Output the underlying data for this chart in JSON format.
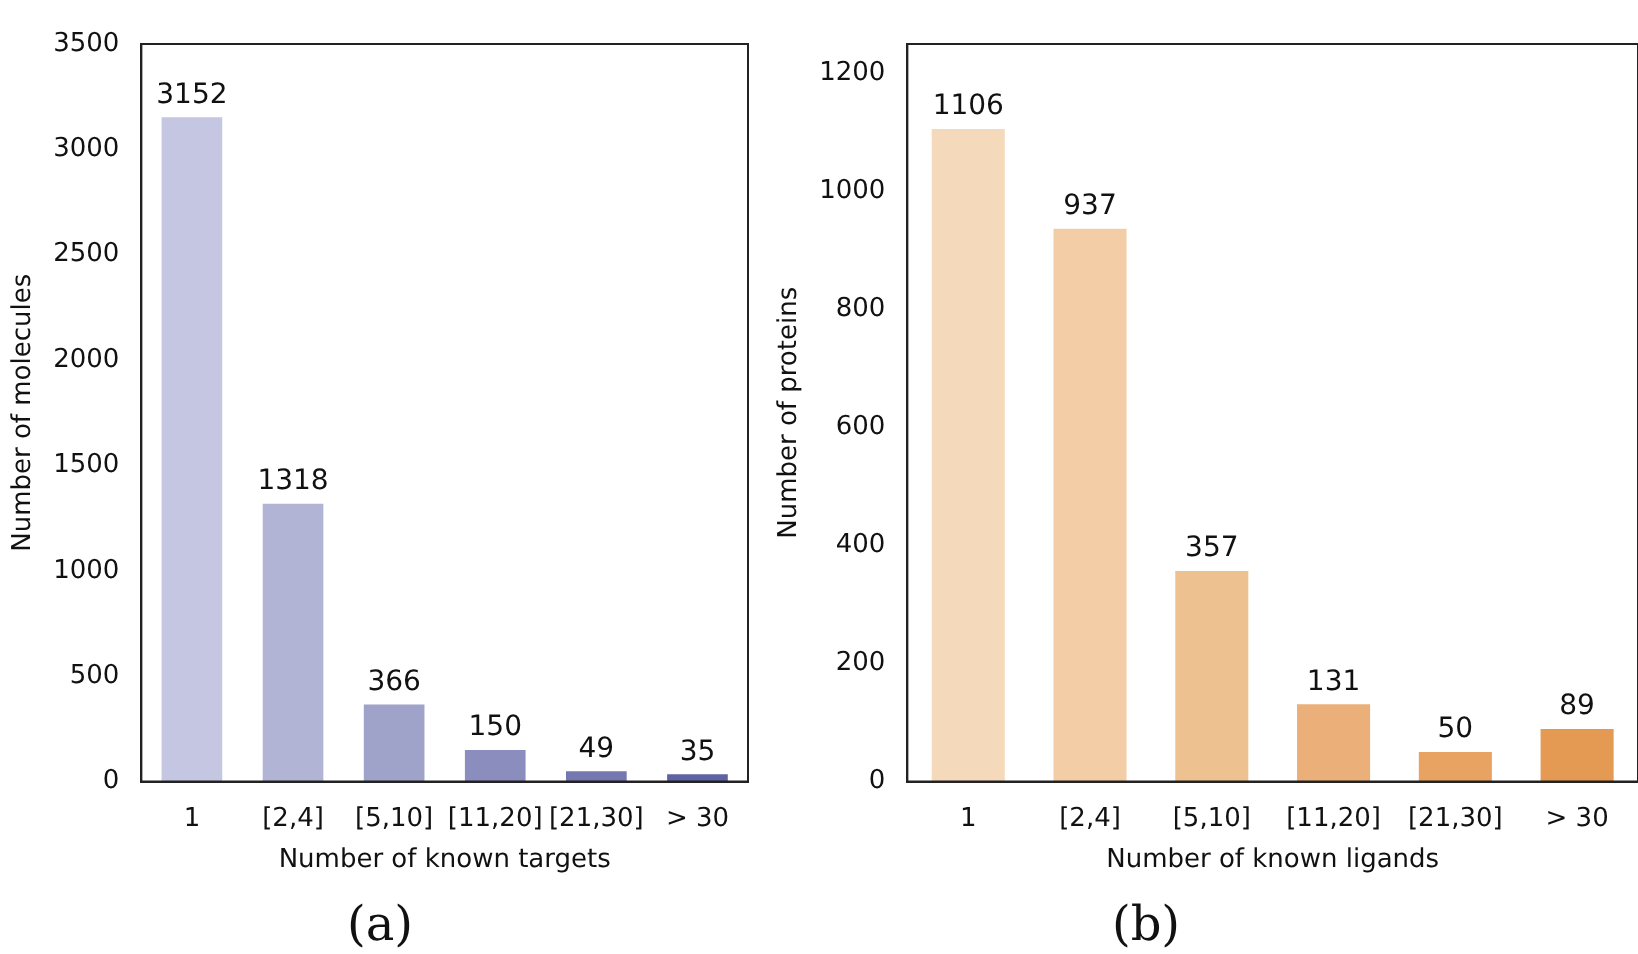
{
  "chart_data": [
    {
      "type": "bar",
      "categories": [
        "1",
        "[2,4]",
        "[5,10]",
        "[11,20]",
        "[21,30]",
        "> 30"
      ],
      "values": [
        3152,
        1318,
        366,
        150,
        49,
        35
      ],
      "colors": [
        "#c5c6e2",
        "#b2b4d6",
        "#9fa2c9",
        "#8a8dbd",
        "#7477b0",
        "#5f63a3"
      ],
      "xlabel": "Number of known targets",
      "ylabel": "Number of molecules",
      "ylim": [
        0,
        3500
      ],
      "yticks": [
        0,
        500,
        1000,
        1500,
        2000,
        2500,
        3000,
        3500
      ],
      "data_labels": true,
      "grid": false,
      "legend": false,
      "annotations": [
        "(a)"
      ]
    },
    {
      "type": "bar",
      "categories": [
        "1",
        "[2,4]",
        "[5,10]",
        "[11,20]",
        "[21,30]",
        "> 30"
      ],
      "values": [
        1106,
        937,
        357,
        131,
        50,
        89
      ],
      "colors": [
        "#f5d9bb",
        "#f2cda6",
        "#eec190",
        "#ebb07a",
        "#e8a262",
        "#e59a53"
      ],
      "xlabel": "Number of known ligands",
      "ylabel": "Number of proteins",
      "ylim": [
        0,
        1250
      ],
      "yticks": [
        0,
        200,
        400,
        600,
        800,
        1000,
        1200
      ],
      "data_labels": true,
      "grid": false,
      "legend": false,
      "annotations": [
        "(b)"
      ]
    }
  ]
}
